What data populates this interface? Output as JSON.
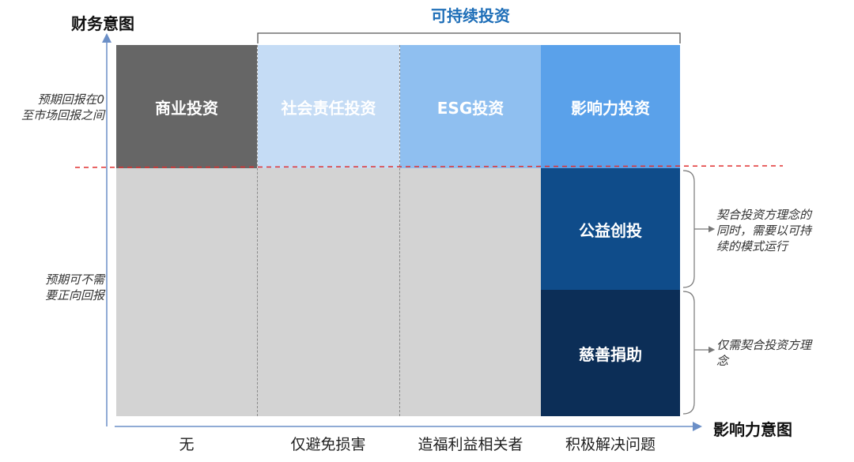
{
  "y_axis_title": "财务意图",
  "x_axis_title": "影响力意图",
  "top_title": "可持续投资",
  "x_categories": [
    "无",
    "仅避免损害",
    "造福利益相关者",
    "积极解决问题"
  ],
  "y_labels": {
    "upper": "预期回报在0\n至市场回报之间",
    "lower": "预期可不需\n要正向回报"
  },
  "cells": {
    "commercial": "商业投资",
    "csr": "社会责任投资",
    "esg": "ESG投资",
    "impact": "影响力投资",
    "venture_philanthropy": "公益创投",
    "charity": "慈善捐助"
  },
  "notes": {
    "venture_philanthropy": "契合投资方理念的\n同时，需要以可持\n续的模式运行",
    "charity": "仅需契合投资方理\n念"
  },
  "colors": {
    "commercial": "#666666",
    "csr": "#c5dcf5",
    "esg": "#8fbff0",
    "impact": "#5aa1ea",
    "venture_philanthropy": "#0f4c8a",
    "charity": "#0c2e57",
    "grey_region": "#d3d3d3",
    "divider": "#e03030",
    "axis": "#6b8fc7",
    "title": "#1f6fb8"
  }
}
